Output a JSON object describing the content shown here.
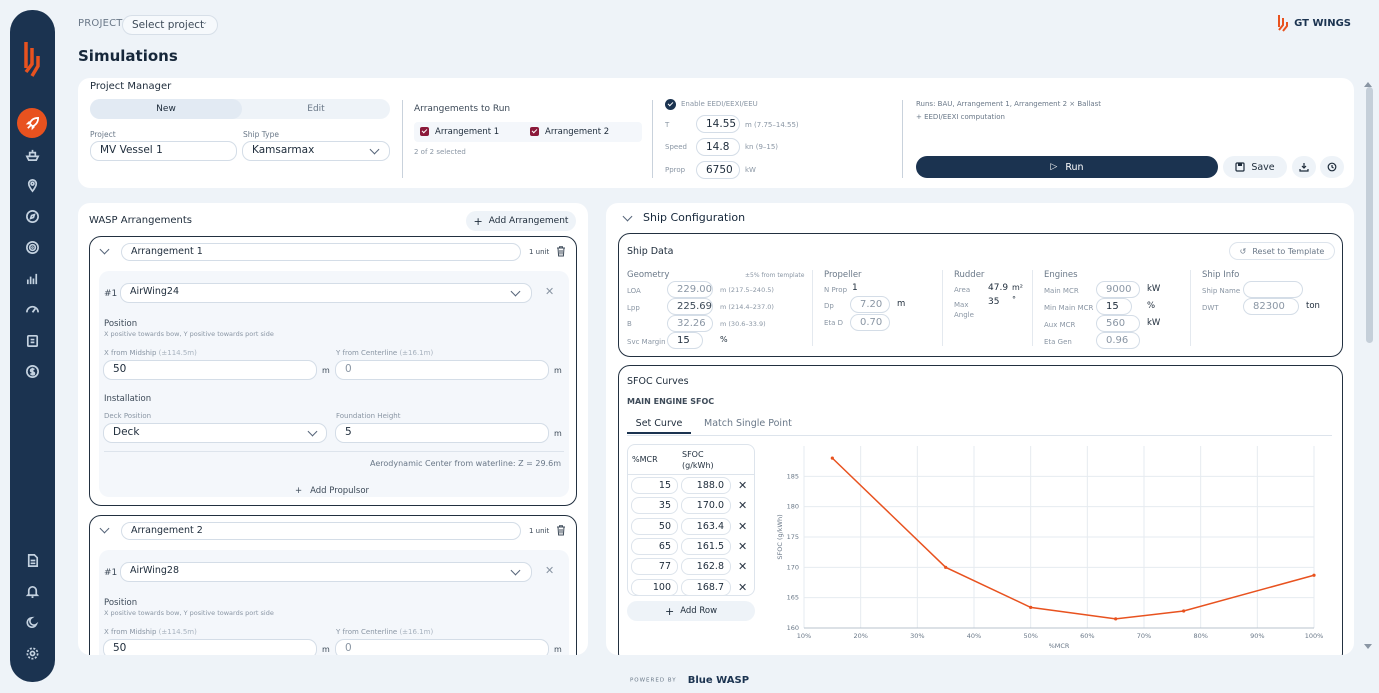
{
  "sidebar": {
    "items": [
      "rocket",
      "ship",
      "location",
      "compass",
      "target",
      "bars",
      "gauge",
      "clipboard",
      "dollar"
    ],
    "bottom": [
      "doc",
      "bell",
      "moon",
      "gear"
    ]
  },
  "topbar": {
    "project_label": "PROJECT",
    "project_select": "Select project",
    "brand": "GT WINGS"
  },
  "page": {
    "title": "Simulations"
  },
  "pm": {
    "title": "Project Manager",
    "tab_new": "New",
    "tab_edit": "Edit",
    "project_label": "Project",
    "project_value": "MV Vessel 1",
    "shiptype_label": "Ship Type",
    "shiptype_value": "Kamsarmax",
    "arr_title": "Arrangements to Run",
    "arr1": "Arrangement 1",
    "arr2": "Arrangement 2",
    "arr_count": "2 of 2 selected",
    "eedi_label": "Enable EEDI/EEXI/EEU",
    "t_label": "T",
    "t_value": "14.55",
    "t_hint": "m (7.75–14.55)",
    "speed_label": "Speed",
    "speed_value": "14.8",
    "speed_hint": "kn (9–15)",
    "pprop_label": "Pprop",
    "pprop_value": "6750",
    "pprop_hint": "kW",
    "runs_text": "Runs: BAU, Arrangement 1, Arrangement 2 × Ballast",
    "runs_text2": "+ EEDI/EEXI computation",
    "run_btn": "Run",
    "save_btn": "Save"
  },
  "wasp": {
    "title": "WASP Arrangements",
    "add_btn": "Add Arrangement",
    "arrangements": [
      {
        "name": "Arrangement 1",
        "units": "1 unit",
        "idx": "#1",
        "propulsor": "AirWing24",
        "x_value": "50",
        "y_value": "0",
        "deck": "Deck",
        "foundation": "5"
      },
      {
        "name": "Arrangement 2",
        "units": "1 unit",
        "idx": "#1",
        "propulsor": "AirWing28",
        "x_value": "50",
        "y_value": "0"
      }
    ],
    "position_label": "Position",
    "position_hint": "X positive towards bow, Y positive towards port side",
    "x_label": "X from Midship",
    "x_range": "(±114.5m)",
    "y_label": "Y from Centerline",
    "y_range": "(±16.1m)",
    "unit_m": "m",
    "install_label": "Installation",
    "deck_label": "Deck Position",
    "found_label": "Foundation Height",
    "aero": "Aerodynamic Center from waterline: Z = 29.6m",
    "add_prop": "Add Propulsor"
  },
  "ship": {
    "title": "Ship Configuration",
    "data_title": "Ship Data",
    "reset": "Reset to Template",
    "geometry": "Geometry",
    "geo_hint": "±5% from template",
    "loa_l": "LOA",
    "loa": "229.00",
    "loa_h": "m (217.5–240.5)",
    "lpp_l": "Lpp",
    "lpp": "225.69",
    "lpp_h": "m (214.4–237.0)",
    "b_l": "B",
    "b": "32.26",
    "b_h": "m (30.6–33.9)",
    "svc_l": "Svc Margin",
    "svc": "15",
    "svc_u": "%",
    "propeller": "Propeller",
    "nprop_l": "N Prop",
    "nprop": "1",
    "dp_l": "Dp",
    "dp": "7.20",
    "dp_u": "m",
    "etad_l": "Eta D",
    "etad": "0.70",
    "rudder": "Rudder",
    "area_l": "Area",
    "area": "47.9",
    "area_u": "m²",
    "maxang_l": "Max Angle",
    "maxang": "35",
    "maxang_u": "°",
    "engines": "Engines",
    "mmcr_l": "Main MCR",
    "mmcr": "9000",
    "mmcr_u": "kW",
    "minmcr_l": "Min Main MCR",
    "minmcr": "15",
    "minmcr_u": "%",
    "aux_l": "Aux MCR",
    "aux": "560",
    "aux_u": "kW",
    "etagen_l": "Eta Gen",
    "etagen": "0.96",
    "shipinfo": "Ship Info",
    "shipname_l": "Ship Name",
    "dwt_l": "DWT",
    "dwt": "82300",
    "dwt_u": "ton"
  },
  "sfoc": {
    "title": "SFOC Curves",
    "sub": "MAIN ENGINE SFOC",
    "tab1": "Set Curve",
    "tab2": "Match Single Point",
    "col1": "%MCR",
    "col2a": "SFOC",
    "col2b": "(g/kWh)",
    "rows": [
      [
        "15",
        "188.0"
      ],
      [
        "35",
        "170.0"
      ],
      [
        "50",
        "163.4"
      ],
      [
        "65",
        "161.5"
      ],
      [
        "77",
        "162.8"
      ],
      [
        "100",
        "168.7"
      ]
    ],
    "add_row": "Add Row"
  },
  "chart_data": {
    "type": "line",
    "xlabel": "%MCR",
    "ylabel": "SFOC (g/kWh)",
    "x": [
      15,
      35,
      50,
      65,
      77,
      100
    ],
    "series": [
      {
        "values": [
          188.0,
          170.0,
          163.4,
          161.5,
          162.8,
          168.7
        ]
      }
    ],
    "xlim": [
      10,
      100
    ],
    "ylim": [
      160,
      190
    ],
    "xticks": [
      "10%",
      "20%",
      "30%",
      "40%",
      "50%",
      "60%",
      "70%",
      "80%",
      "90%",
      "100%"
    ],
    "yticks": [
      "160",
      "165",
      "170",
      "175",
      "180",
      "185"
    ],
    "color": "#e8521f",
    "grid": true
  },
  "footer": {
    "powered": "POWERED BY",
    "brand": "Blue WASP"
  }
}
